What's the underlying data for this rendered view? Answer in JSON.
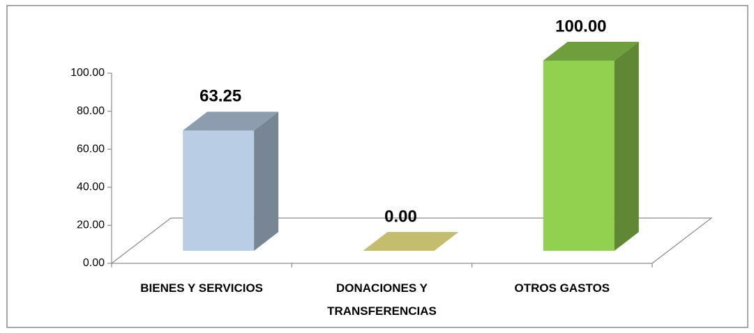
{
  "chart_data": {
    "type": "bar3d",
    "categories": [
      "BIENES Y SERVICIOS",
      "DONACIONES Y TRANSFERENCIAS",
      "OTROS GASTOS"
    ],
    "values": [
      63.25,
      0,
      100
    ],
    "value_labels": [
      "63.25",
      "0.00",
      "100.00"
    ],
    "colors": [
      "#b9cde5",
      "#c4bd6e",
      "#92d050"
    ],
    "ylim": [
      0,
      100
    ],
    "yticks": [
      {
        "value": 0,
        "label": "0.00"
      },
      {
        "value": 20,
        "label": "20.00"
      },
      {
        "value": 40,
        "label": "40.00"
      },
      {
        "value": 60,
        "label": "60.00"
      },
      {
        "value": 80,
        "label": "80.00"
      },
      {
        "value": 100,
        "label": "100.00"
      }
    ]
  }
}
